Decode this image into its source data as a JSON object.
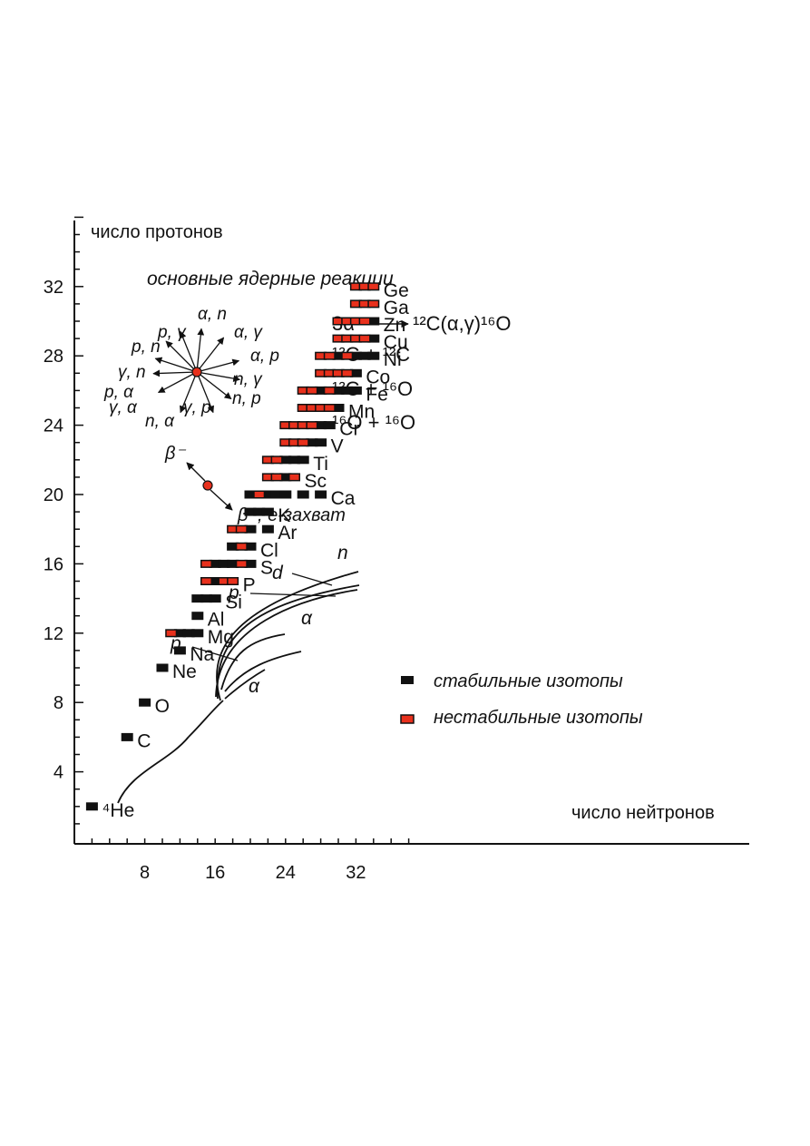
{
  "chart_data": {
    "type": "scatter",
    "xlabel": "число нейтронов",
    "ylabel": "число протонов",
    "xlim": [
      0,
      38
    ],
    "ylim": [
      0,
      36
    ],
    "x_ticks": [
      8,
      16,
      24,
      32
    ],
    "y_ticks": [
      4,
      8,
      12,
      16,
      20,
      24,
      28,
      32
    ],
    "legend": {
      "placement": "middle-right",
      "stable_label": "стабильные изотопы",
      "unstable_label": "нестабильные изотопы",
      "stable_color": "#111111",
      "unstable_color": "#e8301c"
    },
    "inset": {
      "title": "основные ядерные реакции",
      "directions": [
        "α, n",
        "p, γ",
        "α, γ",
        "p, n",
        "α, p",
        "γ, n",
        "n, γ",
        "p, α",
        "n, p",
        "γ, α",
        "γ, p",
        "n, α"
      ],
      "beta_minus": "β⁻",
      "beta_plus": "β⁺, e-захват",
      "reactions": {
        "triple_alpha_prefix": "3α",
        "triple_alpha_product": "¹²C(α,γ)¹⁶O",
        "c_c": "¹²C + ¹²C",
        "c_o": "¹²C + ¹⁶O",
        "o_o": "¹⁶O + ¹⁶O"
      }
    },
    "path_labels": [
      "n",
      "d",
      "p",
      "α",
      "p",
      "α"
    ],
    "rows": [
      {
        "z": 2,
        "label": "⁴He",
        "stable": [
          2
        ],
        "unstable": []
      },
      {
        "z": 6,
        "label": "C",
        "stable": [
          6
        ],
        "unstable": []
      },
      {
        "z": 8,
        "label": "O",
        "stable": [
          8
        ],
        "unstable": []
      },
      {
        "z": 10,
        "label": "Ne",
        "stable": [
          10
        ],
        "unstable": []
      },
      {
        "z": 11,
        "label": "Na",
        "stable": [
          12
        ],
        "unstable": []
      },
      {
        "z": 12,
        "label": "Mg",
        "stable": [
          12,
          13,
          14
        ],
        "unstable": [
          11
        ]
      },
      {
        "z": 13,
        "label": "Al",
        "stable": [
          14
        ],
        "unstable": []
      },
      {
        "z": 14,
        "label": "Si",
        "stable": [
          14,
          15,
          16
        ],
        "unstable": []
      },
      {
        "z": 15,
        "label": "P",
        "stable": [
          16
        ],
        "unstable": [
          15,
          17,
          18
        ]
      },
      {
        "z": 16,
        "label": "S",
        "stable": [
          16,
          17,
          18,
          20
        ],
        "unstable": [
          15,
          19
        ]
      },
      {
        "z": 17,
        "label": "Cl",
        "stable": [
          18,
          20
        ],
        "unstable": [
          19
        ]
      },
      {
        "z": 18,
        "label": "Ar",
        "stable": [
          20,
          22
        ],
        "unstable": [
          18,
          19
        ]
      },
      {
        "z": 19,
        "label": "K",
        "stable": [
          20,
          21,
          22
        ],
        "unstable": []
      },
      {
        "z": 20,
        "label": "Ca",
        "stable": [
          20,
          22,
          23,
          24,
          26,
          28
        ],
        "unstable": [
          21
        ]
      },
      {
        "z": 21,
        "label": "Sc",
        "stable": [
          24
        ],
        "unstable": [
          22,
          23,
          25
        ]
      },
      {
        "z": 22,
        "label": "Ti",
        "stable": [
          24,
          25,
          26
        ],
        "unstable": [
          22,
          23
        ]
      },
      {
        "z": 23,
        "label": "V",
        "stable": [
          27,
          28
        ],
        "unstable": [
          24,
          25,
          26
        ]
      },
      {
        "z": 24,
        "label": "Cr",
        "stable": [
          28,
          29
        ],
        "unstable": [
          24,
          25,
          26,
          27
        ]
      },
      {
        "z": 25,
        "label": "Mn",
        "stable": [
          30
        ],
        "unstable": [
          26,
          27,
          28,
          29
        ]
      },
      {
        "z": 26,
        "label": "Fe",
        "stable": [
          28,
          30,
          31,
          32
        ],
        "unstable": [
          26,
          27,
          29
        ]
      },
      {
        "z": 27,
        "label": "Co",
        "stable": [
          32
        ],
        "unstable": [
          28,
          29,
          30,
          31
        ]
      },
      {
        "z": 28,
        "label": "Ni",
        "stable": [
          30,
          32,
          33,
          34
        ],
        "unstable": [
          28,
          29,
          31
        ]
      },
      {
        "z": 29,
        "label": "Cu",
        "stable": [
          34
        ],
        "unstable": [
          30,
          31,
          32,
          33
        ]
      },
      {
        "z": 30,
        "label": "Zn",
        "stable": [
          34
        ],
        "unstable": [
          30,
          31,
          32,
          33
        ]
      },
      {
        "z": 31,
        "label": "Ga",
        "stable": [],
        "unstable": [
          32,
          33,
          34
        ]
      },
      {
        "z": 32,
        "label": "Ge",
        "stable": [],
        "unstable": [
          32,
          33,
          34
        ]
      }
    ]
  }
}
